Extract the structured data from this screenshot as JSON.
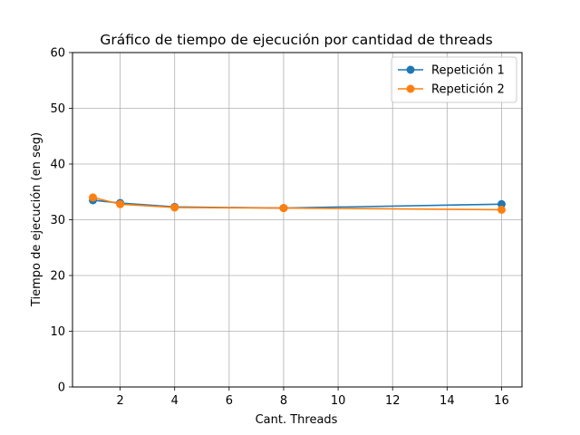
{
  "chart_data": {
    "type": "line",
    "title": "Gráfico de tiempo de ejecución por cantidad de threads",
    "xlabel": "Cant. Threads",
    "ylabel": "Tiempo de ejecución (en seg)",
    "xlim": [
      0.25,
      16.75
    ],
    "ylim": [
      0,
      60
    ],
    "xticks": [
      2,
      4,
      6,
      8,
      10,
      12,
      14,
      16
    ],
    "yticks": [
      0,
      10,
      20,
      30,
      40,
      50,
      60
    ],
    "grid": true,
    "legend_position": "top-right",
    "series": [
      {
        "name": "Repetición 1",
        "color": "#1f77b4",
        "marker": "circle",
        "x": [
          1,
          2,
          4,
          8,
          16
        ],
        "y": [
          33.5,
          33.0,
          32.3,
          32.1,
          32.8
        ]
      },
      {
        "name": "Repetición 2",
        "color": "#ff7f0e",
        "marker": "circle",
        "x": [
          1,
          2,
          4,
          8,
          16
        ],
        "y": [
          34.0,
          32.8,
          32.2,
          32.1,
          31.8
        ]
      }
    ]
  }
}
